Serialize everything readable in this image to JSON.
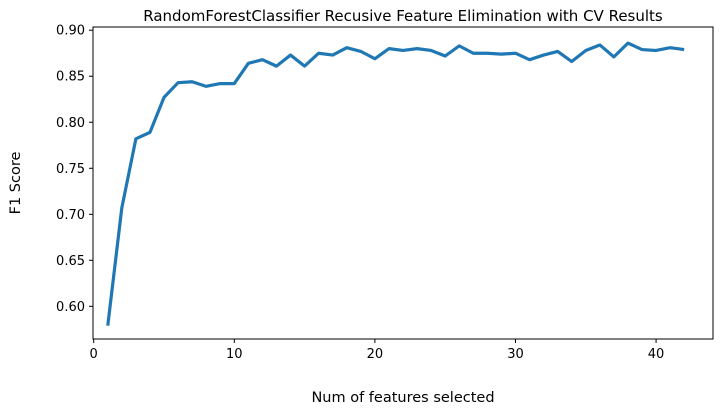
{
  "chart_data": {
    "type": "line",
    "title": "RandomForestClassifier Recusive Feature Elimination with CV Results",
    "xlabel": "Num of features selected",
    "ylabel": "F1 Score",
    "xlim": [
      -0.05,
      44.05
    ],
    "ylim": [
      0.5645,
      0.9035
    ],
    "xticks": [
      0,
      10,
      20,
      30,
      40
    ],
    "xtick_labels": [
      "0",
      "10",
      "20",
      "30",
      "40"
    ],
    "yticks": [
      0.6,
      0.65,
      0.7,
      0.75,
      0.8,
      0.85,
      0.9
    ],
    "ytick_labels": [
      "0.60",
      "0.65",
      "0.70",
      "0.75",
      "0.80",
      "0.85",
      "0.90"
    ],
    "grid": false,
    "legend": false,
    "line_color": "#1f77b4",
    "series": [
      {
        "x": [
          1,
          2,
          3,
          4,
          5,
          6,
          7,
          8,
          9,
          10,
          11,
          12,
          13,
          14,
          15,
          16,
          17,
          18,
          19,
          20,
          21,
          22,
          23,
          24,
          25,
          26,
          27,
          28,
          29,
          30,
          31,
          32,
          33,
          34,
          35,
          36,
          37,
          38,
          39,
          40,
          41,
          42
        ],
        "values": [
          0.579,
          0.707,
          0.782,
          0.789,
          0.827,
          0.843,
          0.844,
          0.839,
          0.842,
          0.842,
          0.864,
          0.868,
          0.861,
          0.873,
          0.861,
          0.875,
          0.873,
          0.881,
          0.877,
          0.869,
          0.88,
          0.878,
          0.88,
          0.878,
          0.872,
          0.883,
          0.875,
          0.875,
          0.874,
          0.875,
          0.868,
          0.873,
          0.877,
          0.866,
          0.878,
          0.884,
          0.871,
          0.886,
          0.879,
          0.878,
          0.881,
          0.879
        ]
      }
    ]
  }
}
